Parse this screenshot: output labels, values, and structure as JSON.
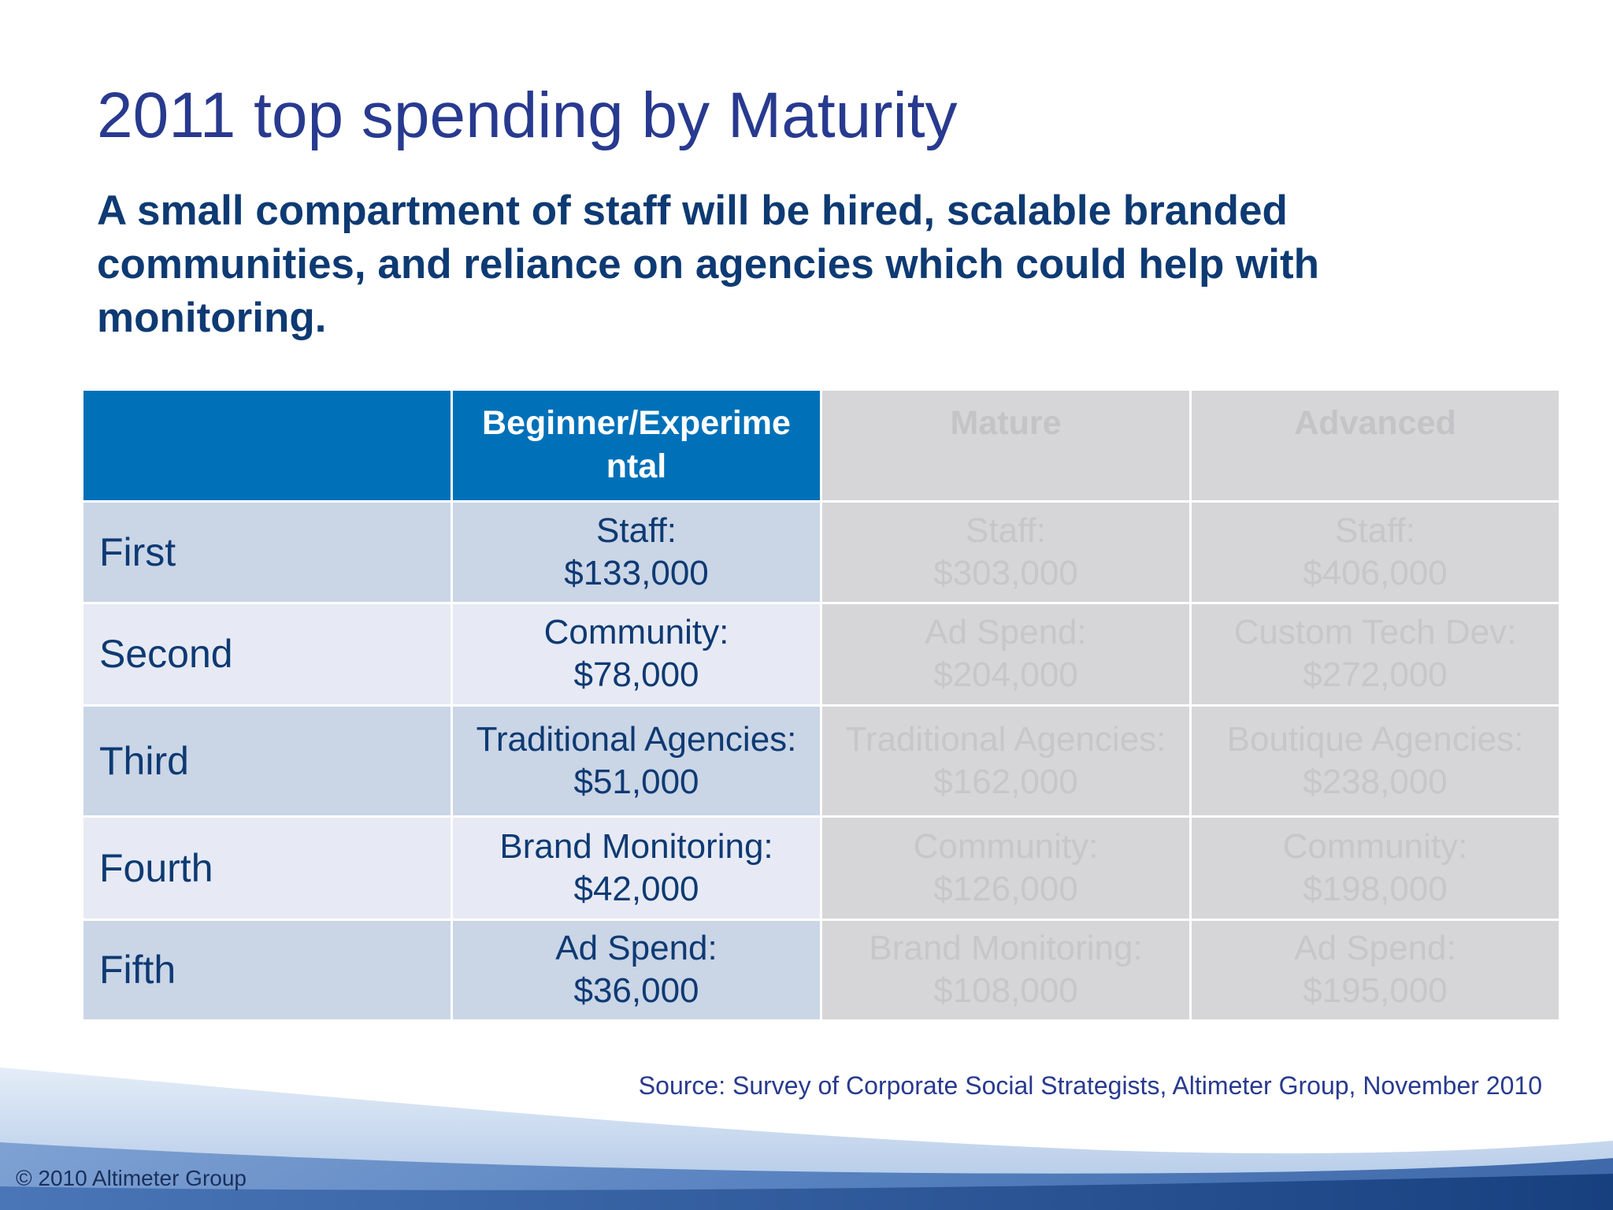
{
  "slide": {
    "title": "2011 top spending by Maturity",
    "subtitle": "A small compartment of staff will be hired, scalable branded communities, and reliance on agencies which could help with monitoring.",
    "table": {
      "headers": [
        "",
        "Beginner/Experime ntal",
        "Mature",
        "Advanced"
      ],
      "rows": [
        {
          "label": "First",
          "cells": [
            {
              "line1": "Staff:",
              "line2": "$133,000"
            },
            {
              "line1": "Staff:",
              "line2": "$303,000"
            },
            {
              "line1": "Staff:",
              "line2": "$406,000"
            }
          ]
        },
        {
          "label": "Second",
          "cells": [
            {
              "line1": "Community:",
              "line2": "$78,000"
            },
            {
              "line1": "Ad Spend:",
              "line2": "$204,000"
            },
            {
              "line1": "Custom Tech Dev:",
              "line2": "$272,000"
            }
          ]
        },
        {
          "label": "Third",
          "cells": [
            {
              "line1": "Traditional Agencies:",
              "line2": "$51,000"
            },
            {
              "line1": "Traditional Agencies:",
              "line2": "$162,000"
            },
            {
              "line1": "Boutique Agencies:",
              "line2": "$238,000"
            }
          ]
        },
        {
          "label": "Fourth",
          "cells": [
            {
              "line1": "Brand Monitoring:",
              "line2": "$42,000"
            },
            {
              "line1": "Community:",
              "line2": "$126,000"
            },
            {
              "line1": "Community:",
              "line2": "$198,000"
            }
          ]
        },
        {
          "label": "Fifth",
          "cells": [
            {
              "line1": "Ad Spend:",
              "line2": "$36,000"
            },
            {
              "line1": "Brand Monitoring:",
              "line2": "$108,000"
            },
            {
              "line1": "Ad Spend:",
              "line2": "$195,000"
            }
          ]
        }
      ]
    },
    "source": "Source: Survey of Corporate Social Strategists, Altimeter Group, November 2010",
    "copyright": "© 2010 Altimeter Group"
  },
  "colors": {
    "title": "#283a8f",
    "subtitle": "#0e3a73",
    "header_active": "#0071b8",
    "header_dim": "#d6d5d7",
    "row_odd": "#cad5e6",
    "row_even": "#e7eaf4",
    "dim_cell": "#d6d5d7"
  }
}
